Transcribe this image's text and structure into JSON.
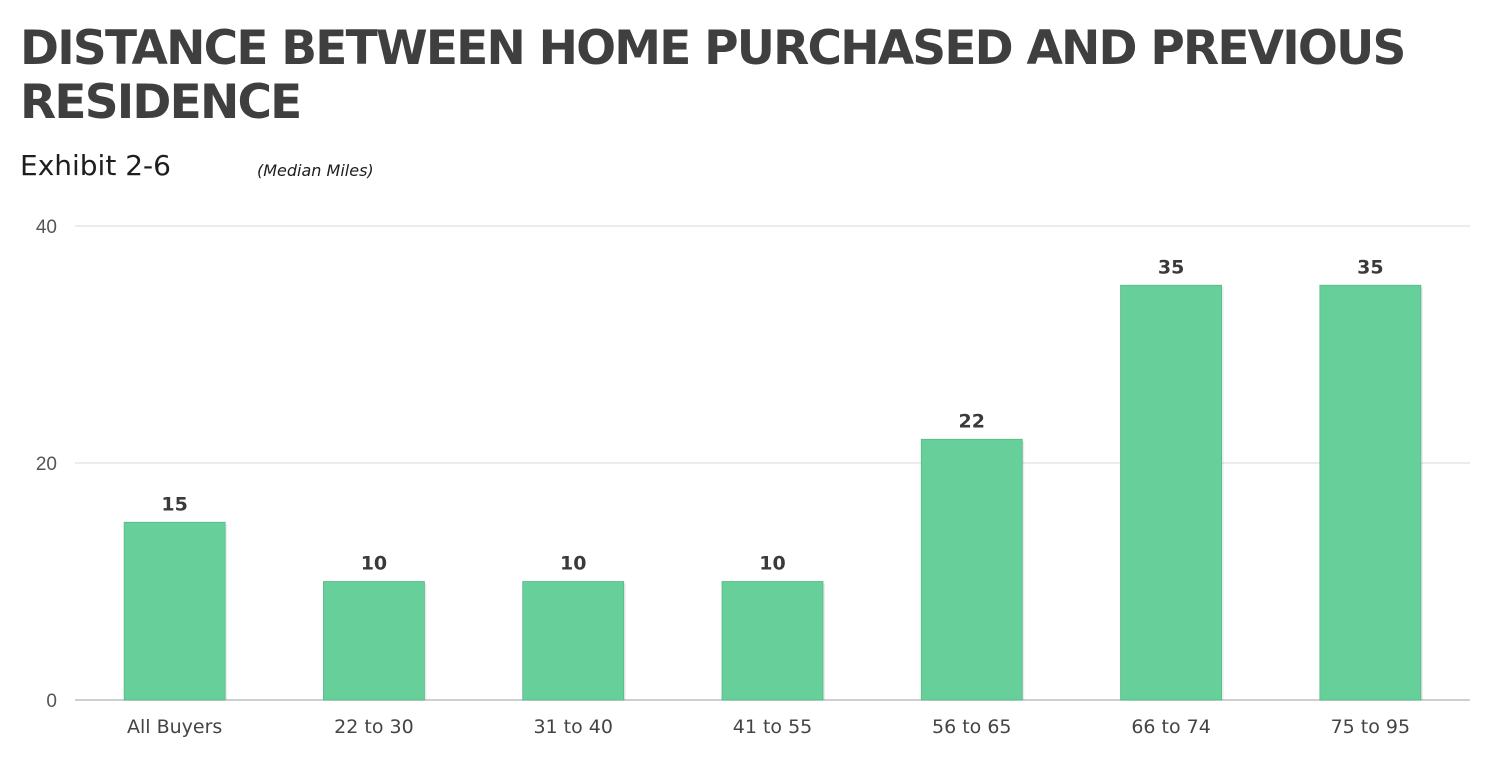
{
  "header": {
    "title": "DISTANCE BETWEEN HOME PURCHASED AND PREVIOUS RESIDENCE",
    "exhibit": "Exhibit 2-6",
    "units": "(Median Miles)"
  },
  "colors": {
    "bar": "#66cf9a",
    "bar_edge": "#57b987",
    "grid": "#d9d9d9",
    "baseline": "#bfbfbf"
  },
  "chart_data": {
    "type": "bar",
    "title": "DISTANCE BETWEEN HOME PURCHASED AND PREVIOUS RESIDENCE",
    "subtitle": "(Median Miles)",
    "categories": [
      "All Buyers",
      "22 to 30",
      "31 to 40",
      "41 to 55",
      "56 to 65",
      "66 to 74",
      "75 to 95"
    ],
    "values": [
      15,
      10,
      10,
      10,
      22,
      35,
      35
    ],
    "data_labels": [
      "15",
      "10",
      "10",
      "10",
      "22",
      "35",
      "35"
    ],
    "yticks": [
      0,
      20,
      40
    ],
    "ytick_labels": [
      "0",
      "20",
      "40"
    ],
    "ylim": [
      0,
      40
    ],
    "xlabel": "",
    "ylabel": "",
    "grid": true,
    "legend": "none"
  }
}
